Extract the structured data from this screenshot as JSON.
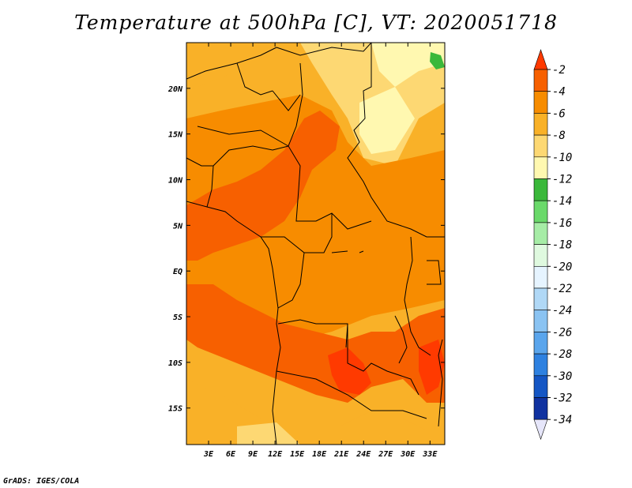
{
  "title": "Temperature at 500hPa [C], VT: 2020051718",
  "credit": "GrADS: IGES/COLA",
  "map": {
    "lon_range": [
      0,
      35
    ],
    "lat_range": [
      -19,
      25
    ],
    "lon_ticks": [
      "3E",
      "6E",
      "9E",
      "12E",
      "15E",
      "18E",
      "21E",
      "24E",
      "27E",
      "30E",
      "33E"
    ],
    "lat_ticks": [
      "20N",
      "15N",
      "10N",
      "5N",
      "EQ",
      "5S",
      "10S",
      "15S"
    ]
  },
  "colorbar": {
    "labels": [
      "-2",
      "-4",
      "-6",
      "-8",
      "-10",
      "-12",
      "-14",
      "-16",
      "-18",
      "-20",
      "-22",
      "-24",
      "-26",
      "-28",
      "-30",
      "-32",
      "-34"
    ],
    "colors": [
      "#ff3a00",
      "#f76000",
      "#f78c00",
      "#f9b128",
      "#fdd873",
      "#fff8b0",
      "#3ab83a",
      "#6ad96a",
      "#a6eca6",
      "#dff9df",
      "#e6f4ff",
      "#b0d8f6",
      "#8ac3f2",
      "#5aa5ec",
      "#2e81e0",
      "#1456c4",
      "#1032a0",
      "#0a1a78"
    ],
    "top_color": "#ff3a00",
    "bottom_color": "#e6e6fa"
  }
}
